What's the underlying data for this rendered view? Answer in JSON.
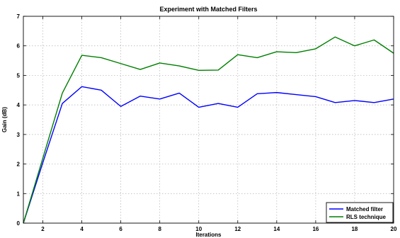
{
  "chart_data": {
    "type": "line",
    "title": "Experiment with Matched Filters",
    "xlabel": "Iterations",
    "ylabel": "Gain (dB)",
    "xlim": [
      1,
      20
    ],
    "ylim": [
      0,
      7
    ],
    "x_ticks": [
      2,
      4,
      6,
      8,
      10,
      12,
      14,
      16,
      18,
      20
    ],
    "y_ticks": [
      0,
      1,
      2,
      3,
      4,
      5,
      6,
      7
    ],
    "grid": true,
    "legend_position": "bottom-right",
    "x": [
      1,
      2,
      3,
      4,
      5,
      6,
      7,
      8,
      9,
      10,
      11,
      12,
      13,
      14,
      15,
      16,
      17,
      18,
      19,
      20
    ],
    "series": [
      {
        "name": "Matched filter",
        "color": "#0000ff",
        "values": [
          0,
          2.05,
          4.05,
          4.62,
          4.5,
          3.95,
          4.3,
          4.2,
          4.4,
          3.92,
          4.05,
          3.92,
          4.38,
          4.42,
          4.35,
          4.28,
          4.08,
          4.15,
          4.08,
          4.2
        ]
      },
      {
        "name": "RLS technique",
        "color": "#007f00",
        "values": [
          0,
          2.2,
          4.4,
          5.68,
          5.6,
          5.4,
          5.2,
          5.42,
          5.32,
          5.17,
          5.18,
          5.7,
          5.6,
          5.8,
          5.77,
          5.9,
          6.3,
          6.0,
          6.2,
          5.75
        ]
      }
    ]
  }
}
